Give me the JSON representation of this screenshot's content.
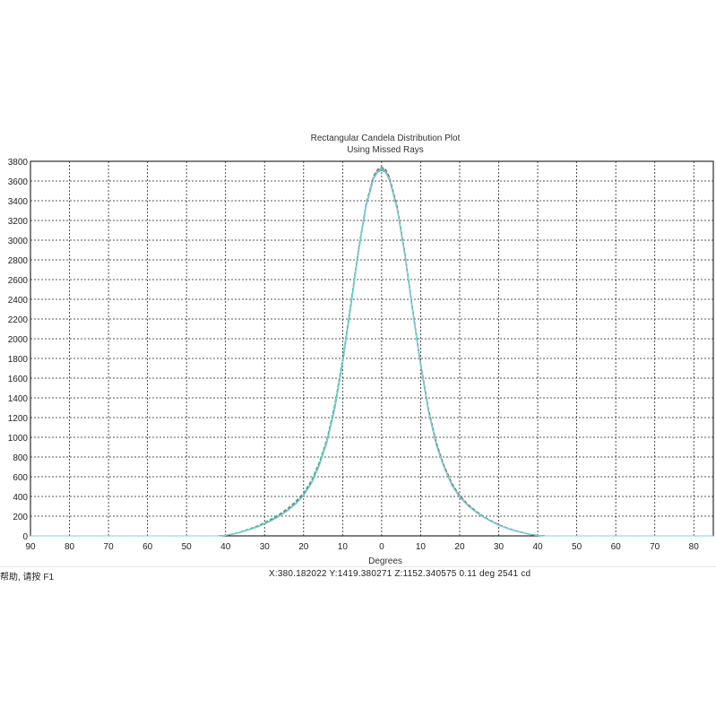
{
  "chart_data": {
    "type": "line",
    "title": "Rectangular Candela Distribution Plot",
    "subtitle": "Using Missed Rays",
    "xlabel": "Degrees",
    "ylabel": "",
    "xlim": [
      -90,
      85
    ],
    "ylim": [
      0,
      3800
    ],
    "grid": true,
    "x_ticks": [
      -90,
      -80,
      -70,
      -60,
      -50,
      -40,
      -30,
      -20,
      -10,
      0,
      10,
      20,
      30,
      40,
      50,
      60,
      70,
      80
    ],
    "x_tick_labels": [
      "90",
      "80",
      "70",
      "60",
      "50",
      "40",
      "30",
      "20",
      "10",
      "0",
      "10",
      "20",
      "30",
      "40",
      "50",
      "60",
      "70",
      "80"
    ],
    "y_ticks": [
      0,
      200,
      400,
      600,
      800,
      1000,
      1200,
      1400,
      1600,
      1800,
      2000,
      2200,
      2400,
      2600,
      2800,
      3000,
      3200,
      3400,
      3600,
      3800
    ],
    "y_tick_labels": [
      "0",
      "200",
      "400",
      "600",
      "800",
      "1000",
      "1200",
      "1400",
      "1600",
      "1800",
      "2000",
      "2200",
      "2400",
      "2600",
      "2800",
      "3000",
      "3200",
      "3400",
      "3600",
      "3800"
    ],
    "x": [
      -90,
      -80,
      -70,
      -60,
      -50,
      -42,
      -40,
      -38,
      -36,
      -34,
      -32,
      -30,
      -28,
      -26,
      -24,
      -22,
      -20,
      -18,
      -16,
      -14,
      -12,
      -10,
      -8,
      -6,
      -4,
      -2,
      -1,
      0,
      1,
      2,
      4,
      6,
      8,
      10,
      12,
      14,
      16,
      18,
      20,
      22,
      24,
      26,
      28,
      30,
      32,
      34,
      36,
      38,
      40,
      42,
      50,
      60,
      70,
      80,
      85
    ],
    "series": [
      {
        "color": "#1f8f9a",
        "values": [
          0,
          0,
          0,
          0,
          0,
          0,
          5,
          20,
          40,
          65,
          90,
          125,
          165,
          210,
          265,
          330,
          415,
          540,
          720,
          960,
          1300,
          1760,
          2300,
          2870,
          3350,
          3640,
          3700,
          3720,
          3700,
          3620,
          3320,
          2840,
          2270,
          1730,
          1270,
          930,
          700,
          520,
          400,
          315,
          250,
          195,
          150,
          110,
          80,
          55,
          35,
          15,
          5,
          0,
          0,
          0,
          0,
          0,
          0
        ]
      },
      {
        "color": "#8a3a3a",
        "values": [
          0,
          0,
          0,
          0,
          0,
          0,
          5,
          20,
          42,
          68,
          95,
          130,
          170,
          218,
          272,
          340,
          425,
          550,
          735,
          975,
          1320,
          1780,
          2320,
          2890,
          3370,
          3660,
          3720,
          3740,
          3720,
          3640,
          3340,
          2860,
          2290,
          1750,
          1290,
          950,
          715,
          535,
          410,
          325,
          258,
          200,
          155,
          115,
          83,
          57,
          36,
          16,
          5,
          0,
          0,
          0,
          0,
          0,
          0
        ]
      },
      {
        "color": "#2e5fa8",
        "values": [
          0,
          0,
          0,
          0,
          0,
          0,
          4,
          18,
          38,
          62,
          88,
          122,
          160,
          205,
          260,
          325,
          410,
          532,
          712,
          950,
          1290,
          1750,
          2290,
          2860,
          3340,
          3630,
          3690,
          3710,
          3690,
          3610,
          3310,
          2830,
          2260,
          1720,
          1260,
          920,
          692,
          512,
          393,
          310,
          246,
          192,
          148,
          108,
          78,
          53,
          33,
          14,
          4,
          0,
          0,
          0,
          0,
          0,
          0
        ]
      },
      {
        "color": "#2ecc71",
        "values": [
          0,
          0,
          0,
          0,
          0,
          0,
          6,
          22,
          45,
          72,
          100,
          138,
          180,
          228,
          285,
          355,
          440,
          565,
          750,
          990,
          1340,
          1800,
          2340,
          2900,
          3360,
          3650,
          3710,
          3730,
          3710,
          3630,
          3330,
          2850,
          2280,
          1740,
          1280,
          940,
          706,
          525,
          404,
          318,
          252,
          197,
          152,
          112,
          81,
          56,
          35,
          15,
          5,
          0,
          0,
          0,
          0,
          0,
          0
        ]
      },
      {
        "color": "#7fdbe6",
        "values": [
          0,
          0,
          0,
          0,
          0,
          0,
          5,
          19,
          39,
          63,
          89,
          124,
          163,
          208,
          263,
          328,
          412,
          536,
          716,
          955,
          1295,
          1755,
          2295,
          2865,
          3345,
          3635,
          3695,
          3715,
          3695,
          3615,
          3315,
          2835,
          2265,
          1725,
          1265,
          925,
          696,
          516,
          396,
          312,
          248,
          193,
          149,
          109,
          79,
          54,
          34,
          14,
          4,
          0,
          0,
          0,
          0,
          0,
          0
        ]
      }
    ]
  },
  "status": {
    "left_text": "帮助, 请按 F1",
    "coords_text": "X:380.182022 Y:1419.380271 Z:1152.340575 0.11 deg 2541 cd"
  }
}
